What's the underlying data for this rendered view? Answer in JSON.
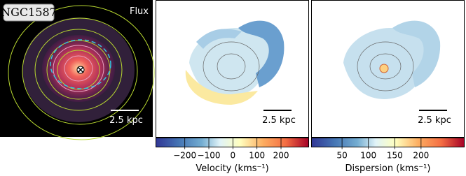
{
  "panels": [
    {
      "name": "NGC1587",
      "label": "Flux",
      "scale_bar": "2.5 kpc"
    },
    {
      "scale_bar": "2.5 kpc"
    },
    {
      "scale_bar": "2.5 kpc"
    }
  ],
  "colorbars": [
    {
      "label": "Velocity (kms⁻¹)",
      "lim": [
        -320,
        315
      ],
      "ticks": [
        {
          "value": -200,
          "label": "−200"
        },
        {
          "value": -100,
          "label": "−100"
        },
        0,
        100,
        200
      ]
    },
    {
      "label": "Dispersion (kms⁻¹)",
      "lim": [
        -8,
        282
      ],
      "ticks": [
        50,
        100,
        150,
        200
      ]
    }
  ]
}
